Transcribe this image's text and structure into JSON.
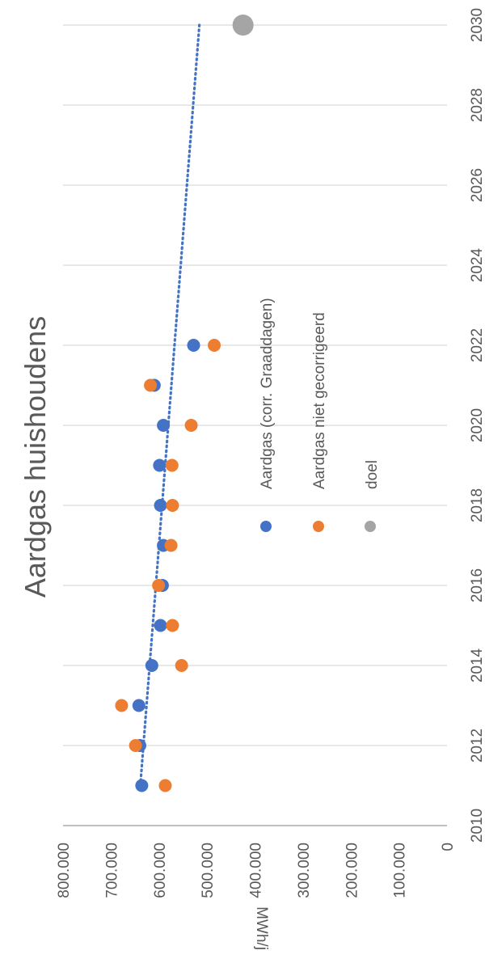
{
  "chart_data": {
    "type": "scatter",
    "title": "Aardgas huishoudens",
    "xlabel": "",
    "ylabel": "MWh/j",
    "xlim": [
      2010,
      2030
    ],
    "ylim": [
      0,
      800000
    ],
    "x_ticks": [
      "2010",
      "2012",
      "2014",
      "2016",
      "2018",
      "2020",
      "2022",
      "2024",
      "2026",
      "2028",
      "2030"
    ],
    "y_ticks": [
      "0",
      "100.000",
      "200.000",
      "300.000",
      "400.000",
      "500.000",
      "600.000",
      "700.000",
      "800.000"
    ],
    "grid": "vertical gridlines at year ticks",
    "legend_position": "right",
    "series": [
      {
        "name": "Aardgas (corr. Graaddagen)",
        "color": "#4472C4",
        "x": [
          2011,
          2012,
          2013,
          2014,
          2015,
          2016,
          2017,
          2018,
          2019,
          2020,
          2021,
          2022
        ],
        "y": [
          636000,
          640000,
          642000,
          615000,
          597000,
          593000,
          591000,
          597000,
          599000,
          591000,
          610000,
          528000
        ]
      },
      {
        "name": "Aardgas niet gecorrigeerd",
        "color": "#ED7D31",
        "x": [
          2011,
          2012,
          2013,
          2014,
          2015,
          2016,
          2017,
          2018,
          2019,
          2020,
          2021,
          2022
        ],
        "y": [
          587000,
          649000,
          678000,
          553000,
          572000,
          601000,
          575000,
          572000,
          573000,
          533000,
          618000,
          485000
        ]
      },
      {
        "name": "doel",
        "color": "#A5A5A5",
        "x": [
          2030
        ],
        "y": [
          425000
        ]
      }
    ],
    "trendline": {
      "series": "Aardgas (corr. Graaddagen)",
      "style": "dotted",
      "color": "#4472C4",
      "x": [
        2011,
        2030
      ],
      "y": [
        639000,
        516000
      ]
    }
  }
}
